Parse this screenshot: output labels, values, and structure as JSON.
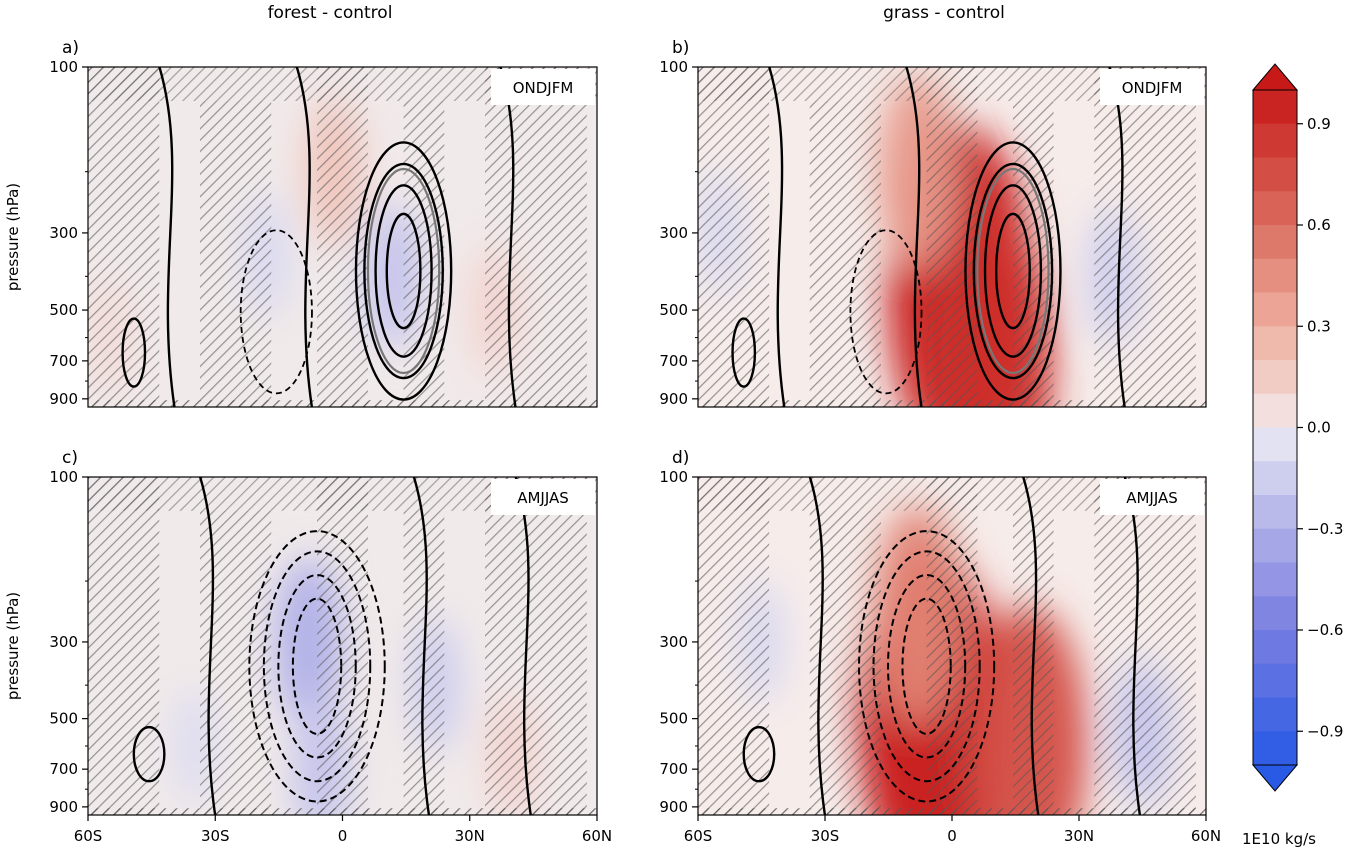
{
  "chart_data": {
    "type": "heatmap",
    "column_titles": [
      "forest - control",
      "grass - control"
    ],
    "ylabel": "pressure (hPa)",
    "x_ticks": [
      "60S",
      "30S",
      "0",
      "30N",
      "60N"
    ],
    "y_ticks": [
      "100",
      "300",
      "500",
      "700",
      "900"
    ],
    "xlim": [
      -60,
      60
    ],
    "ylim": [
      950,
      100
    ],
    "yscale": "log",
    "hatching": "stippled regions of non-significance",
    "panels": [
      {
        "label": "a)",
        "season": "ONDJFM",
        "anomaly_features": [
          {
            "lat": 12,
            "p": 400,
            "value": -0.2
          },
          {
            "lat": -2,
            "p": 200,
            "value": 0.2
          },
          {
            "lat": 36,
            "p": 500,
            "value": 0.12
          },
          {
            "lat": -55,
            "p": 600,
            "value": 0.08
          },
          {
            "lat": -18,
            "p": 350,
            "value": -0.1
          }
        ]
      },
      {
        "label": "b)",
        "season": "ONDJFM",
        "anomaly_features": [
          {
            "lat": 2,
            "p": 450,
            "value": 1.0
          },
          {
            "lat": 8,
            "p": 700,
            "value": 0.9
          },
          {
            "lat": -8,
            "p": 200,
            "value": 0.4
          },
          {
            "lat": 38,
            "p": 400,
            "value": -0.15
          },
          {
            "lat": -55,
            "p": 300,
            "value": -0.1
          }
        ]
      },
      {
        "label": "c)",
        "season": "AMJJAS",
        "anomaly_features": [
          {
            "lat": -8,
            "p": 300,
            "value": -0.3
          },
          {
            "lat": -5,
            "p": 700,
            "value": -0.2
          },
          {
            "lat": 22,
            "p": 400,
            "value": -0.15
          },
          {
            "lat": 40,
            "p": 650,
            "value": 0.12
          },
          {
            "lat": -35,
            "p": 600,
            "value": -0.08
          }
        ]
      },
      {
        "label": "d)",
        "season": "AMJJAS",
        "anomaly_features": [
          {
            "lat": -5,
            "p": 500,
            "value": 1.0
          },
          {
            "lat": 18,
            "p": 600,
            "value": 0.75
          },
          {
            "lat": -8,
            "p": 250,
            "value": 0.5
          },
          {
            "lat": 45,
            "p": 550,
            "value": -0.2
          },
          {
            "lat": -45,
            "p": 300,
            "value": -0.1
          }
        ]
      }
    ],
    "colorbar": {
      "ticks": [
        "0.9",
        "0.6",
        "0.3",
        "0.0",
        "−0.3",
        "−0.6",
        "−0.9"
      ],
      "range": [
        -1.0,
        1.0
      ],
      "levels": 20,
      "unit_label": "1E10 kg/s",
      "extend": "both"
    }
  }
}
